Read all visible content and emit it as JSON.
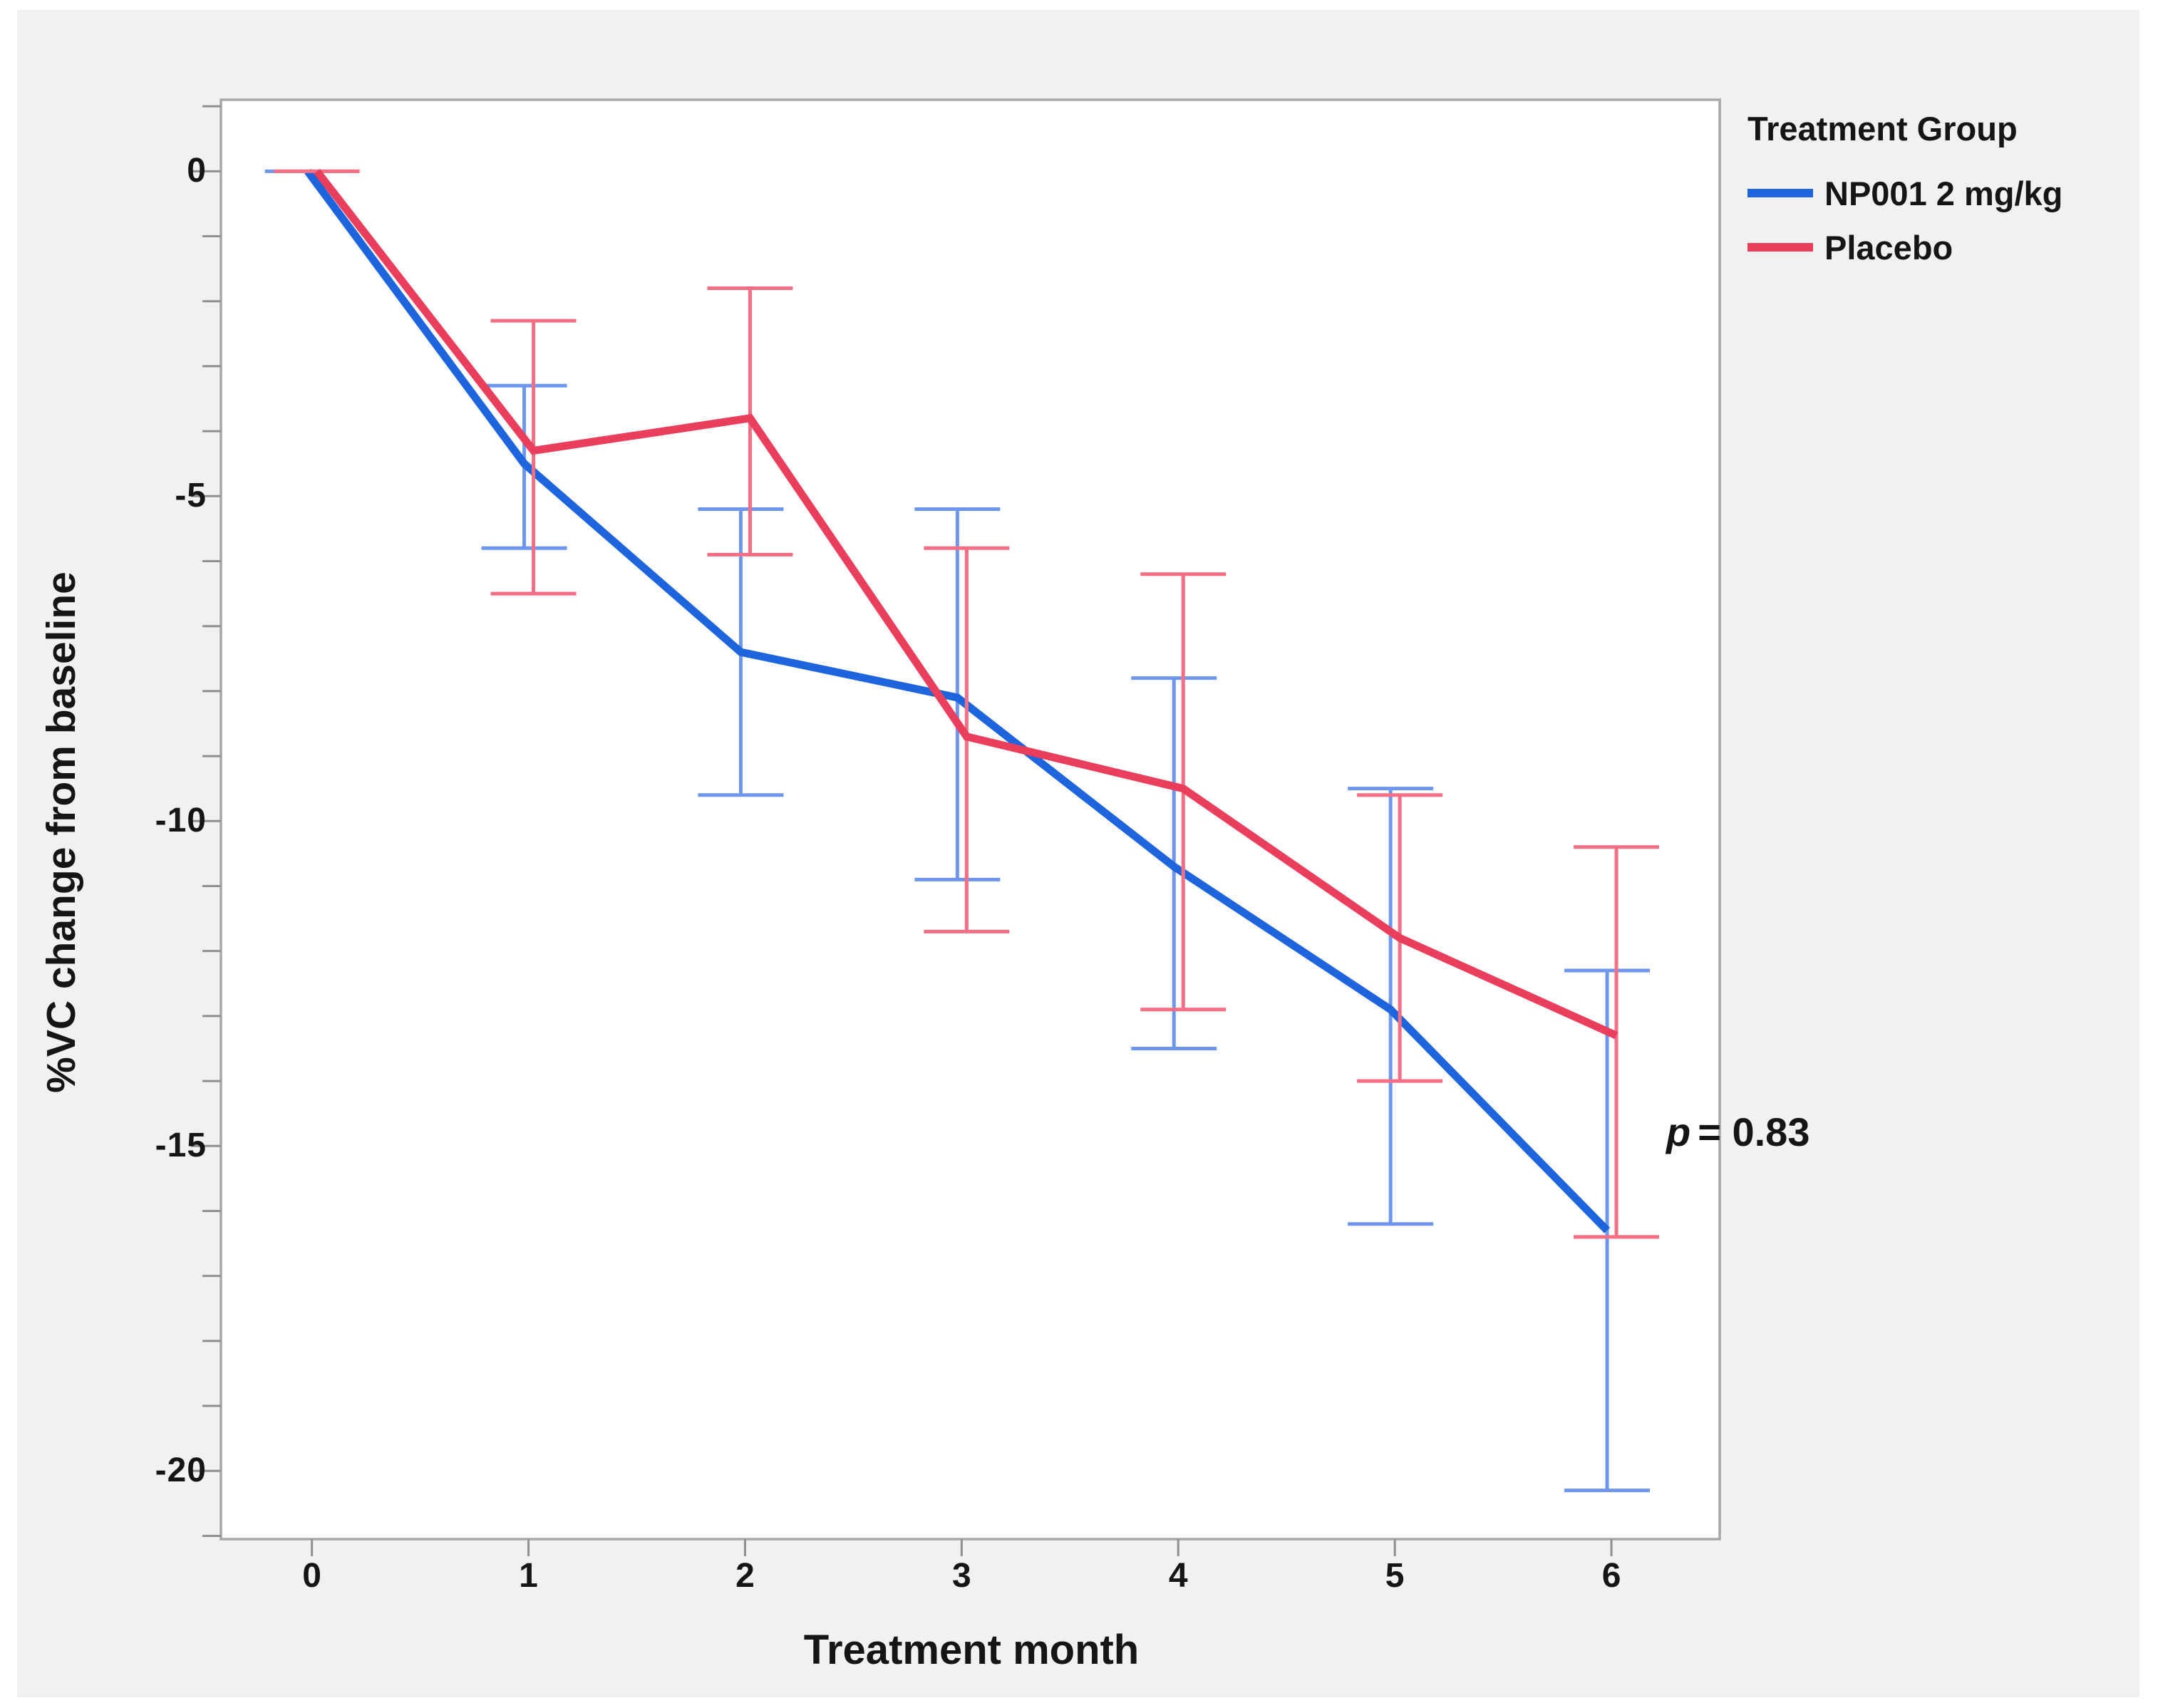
{
  "panel": {
    "bg": "#f1f1f2",
    "plot_bg": "#ffffff",
    "border_color": "#a7a7a9",
    "tick_color": "#8f8f92",
    "text_color": "#151515"
  },
  "axes": {
    "y_title": "%VC change from baseline",
    "x_title": "Treatment month"
  },
  "legend": {
    "title": "Treatment Group",
    "entries": [
      {
        "label": "NP001 2 mg/kg",
        "color": "#1d64dd"
      },
      {
        "label": "Placebo",
        "color": "#e93e5c"
      }
    ]
  },
  "annotation": {
    "symbol": "p",
    "text": "= 0.83"
  },
  "chart_data": {
    "type": "line",
    "title": "",
    "xlabel": "Treatment month",
    "ylabel": "%VC change from baseline",
    "legend_title": "Treatment Group",
    "legend_position": "top-right",
    "grid": false,
    "annotation": "p = 0.83",
    "x": [
      0,
      1,
      2,
      3,
      4,
      5,
      6
    ],
    "x_tick_labels": [
      "0",
      "1",
      "2",
      "3",
      "4",
      "5",
      "6"
    ],
    "y_tick_values": [
      0,
      -5,
      -10,
      -15,
      -20
    ],
    "y_tick_labels": [
      "0",
      "-5",
      "-10",
      "-15",
      "-20"
    ],
    "y_minor_step": 1,
    "xlim": [
      -0.42,
      6.5
    ],
    "ylim": [
      -21.05,
      1.1
    ],
    "series": [
      {
        "name": "NP001 2 mg/kg",
        "color": "#1d64dd",
        "error_color": "#6e96ef",
        "values": [
          0,
          -4.5,
          -7.4,
          -8.1,
          -10.7,
          -12.9,
          -16.3
        ],
        "upper": [
          0,
          -3.3,
          -5.2,
          -5.2,
          -7.8,
          -9.5,
          -12.3
        ],
        "lower": [
          0,
          -5.8,
          -9.6,
          -10.9,
          -13.5,
          -16.2,
          -20.3
        ]
      },
      {
        "name": "Placebo",
        "color": "#e93e5c",
        "error_color": "#f66e83",
        "values": [
          0,
          -4.3,
          -3.8,
          -8.7,
          -9.5,
          -11.8,
          -13.3
        ],
        "upper": [
          0,
          -2.3,
          -1.8,
          -5.8,
          -6.2,
          -9.6,
          -10.4
        ],
        "lower": [
          0,
          -6.5,
          -5.9,
          -11.7,
          -12.9,
          -14.0,
          -16.4
        ]
      }
    ]
  }
}
